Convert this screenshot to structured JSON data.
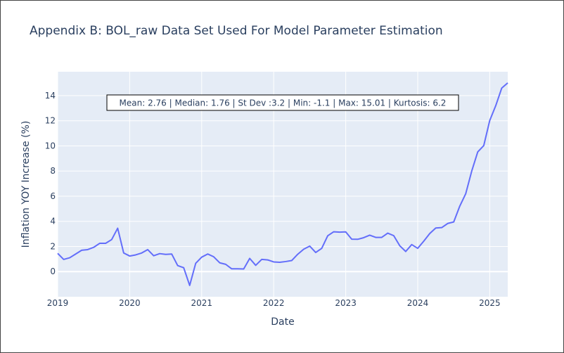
{
  "chart_data": {
    "type": "line",
    "title": "Appendix B: BOL_raw Data Set Used For Model Parameter Estimation",
    "xlabel": "Date",
    "ylabel": "Inflation YOY Increase (%)",
    "x_ticks": [
      "2019",
      "2020",
      "2021",
      "2022",
      "2023",
      "2024",
      "2025"
    ],
    "y_ticks": [
      0,
      2,
      4,
      6,
      8,
      10,
      12,
      14
    ],
    "xlim": [
      "2019-01",
      "2025-04"
    ],
    "ylim": [
      -2.0,
      15.9
    ],
    "grid": true,
    "annotation": "Mean: 2.76 | Median: 1.76 | St Dev :3.2 | Min: -1.1 | Max: 15.01 | Kurtosis: 6.2",
    "line_color": "#636efa",
    "series": [
      {
        "x": [
          "2019-01",
          "2019-02",
          "2019-03",
          "2019-04",
          "2019-05",
          "2019-06",
          "2019-07",
          "2019-08",
          "2019-09",
          "2019-10",
          "2019-11",
          "2019-12",
          "2020-01",
          "2020-02",
          "2020-03",
          "2020-04",
          "2020-05",
          "2020-06",
          "2020-07",
          "2020-08",
          "2020-09",
          "2020-10",
          "2020-11",
          "2020-12",
          "2021-01",
          "2021-02",
          "2021-03",
          "2021-04",
          "2021-05",
          "2021-06",
          "2021-07",
          "2021-08",
          "2021-09",
          "2021-10",
          "2021-11",
          "2021-12",
          "2022-01",
          "2022-02",
          "2022-03",
          "2022-04",
          "2022-05",
          "2022-06",
          "2022-07",
          "2022-08",
          "2022-09",
          "2022-10",
          "2022-11",
          "2022-12",
          "2023-01",
          "2023-02",
          "2023-03",
          "2023-04",
          "2023-05",
          "2023-06",
          "2023-07",
          "2023-08",
          "2023-09",
          "2023-10",
          "2023-11",
          "2023-12",
          "2024-01",
          "2024-02",
          "2024-03",
          "2024-04",
          "2024-05",
          "2024-06",
          "2024-07",
          "2024-08",
          "2024-09",
          "2024-10",
          "2024-11",
          "2024-12",
          "2025-01",
          "2025-02",
          "2025-03",
          "2025-04"
        ],
        "values": [
          1.45,
          0.97,
          1.1,
          1.4,
          1.7,
          1.75,
          1.93,
          2.25,
          2.25,
          2.55,
          3.45,
          1.48,
          1.24,
          1.33,
          1.48,
          1.75,
          1.26,
          1.43,
          1.37,
          1.4,
          0.48,
          0.31,
          -1.1,
          0.66,
          1.15,
          1.4,
          1.18,
          0.7,
          0.58,
          0.22,
          0.22,
          0.21,
          1.05,
          0.5,
          0.97,
          0.93,
          0.77,
          0.74,
          0.8,
          0.88,
          1.38,
          1.78,
          2.03,
          1.52,
          1.85,
          2.85,
          3.17,
          3.14,
          3.16,
          2.58,
          2.57,
          2.7,
          2.9,
          2.72,
          2.72,
          3.06,
          2.86,
          2.06,
          1.6,
          2.15,
          1.85,
          2.42,
          3.03,
          3.47,
          3.5,
          3.83,
          3.95,
          5.2,
          6.2,
          8.0,
          9.52,
          10.02,
          12.02,
          13.2,
          14.6,
          15.01
        ]
      }
    ]
  }
}
